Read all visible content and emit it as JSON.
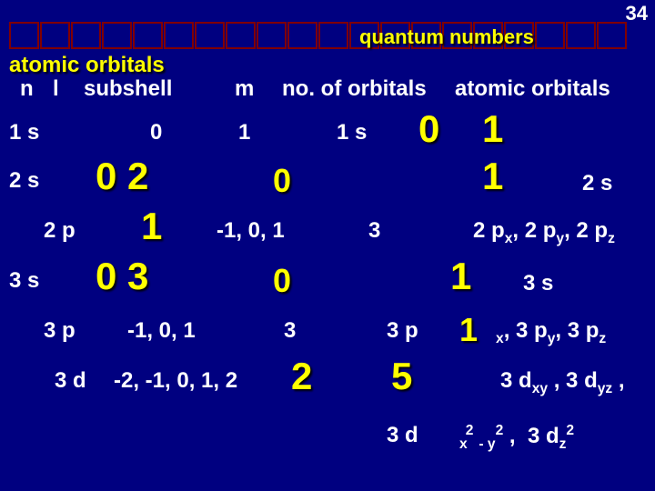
{
  "colors": {
    "background": "#000080",
    "text_white": "#ffffff",
    "text_yellow": "#ffff00",
    "box_border": "#800000",
    "shadow": "#000000"
  },
  "page_number": "34",
  "box_count": 20,
  "quantum_label": "quantum numbers",
  "atomic_orbitals_top": "atomic  orbitals",
  "headers": {
    "n": "n",
    "l": "l",
    "subshell": "subshell",
    "m": "m",
    "no_orbitals": "no. of orbitals",
    "atomic_orbitals": "atomic orbitals"
  },
  "rows": {
    "r1": {
      "label": "1 s",
      "l": "0",
      "m": "1",
      "no": "1 s",
      "big0": "0",
      "big1": "1"
    },
    "r2s": {
      "label": "2 s",
      "l_n": "0  2",
      "m": "0",
      "big1": "1",
      "ao": "2 s"
    },
    "r2p": {
      "label": "2 p",
      "l": "1",
      "m": "-1, 0, 1",
      "no": "3",
      "ao_prefix": "2 p"
    },
    "r3s": {
      "label": "3 s",
      "l_n": "0  3",
      "m": "0",
      "big1": "1",
      "ao": "3 s"
    },
    "r3p": {
      "label": "3 p",
      "l": "-1, 0, 1",
      "m": "3",
      "no": "3 p",
      "big1": "1",
      "ao_prefix": "3 p"
    },
    "r3d": {
      "label": "3 d",
      "l": "-2, -1, 0, 1, 2",
      "m": "2",
      "no": "5",
      "ao_prefix": "3 d"
    },
    "r3d2": {
      "label_bottom": "3 d"
    }
  },
  "subscripts": {
    "xyz": {
      "x": "x",
      "y": "y",
      "z": "z",
      "xy": "xy",
      "yz": "yz"
    },
    "bottom": {
      "x2y2": "x     - y",
      "z2": "z",
      "sq": "2"
    }
  },
  "fonts": {
    "body": 24,
    "large": 36,
    "xlarge": 42,
    "sub": 16
  }
}
